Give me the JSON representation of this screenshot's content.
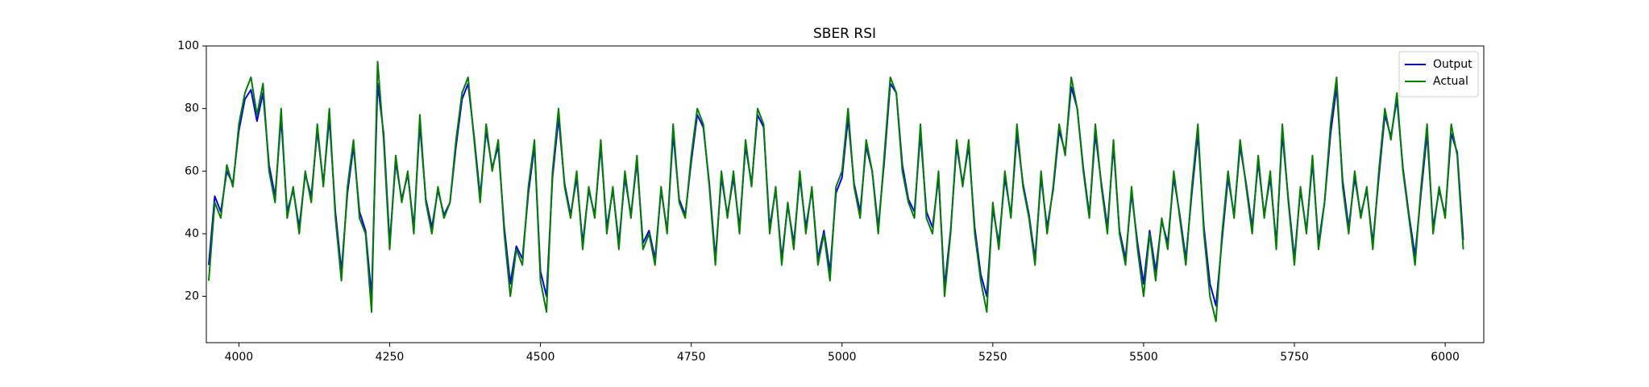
{
  "chart_data": {
    "type": "line",
    "title": "SBER RSI",
    "x": [
      3950,
      3960,
      3970,
      3980,
      3990,
      4000,
      4010,
      4020,
      4030,
      4040,
      4050,
      4060,
      4070,
      4080,
      4090,
      4100,
      4110,
      4120,
      4130,
      4140,
      4150,
      4160,
      4170,
      4180,
      4190,
      4200,
      4210,
      4220,
      4230,
      4240,
      4250,
      4260,
      4270,
      4280,
      4290,
      4300,
      4310,
      4320,
      4330,
      4340,
      4350,
      4360,
      4370,
      4380,
      4390,
      4400,
      4410,
      4420,
      4430,
      4440,
      4450,
      4460,
      4470,
      4480,
      4490,
      4500,
      4510,
      4520,
      4530,
      4540,
      4550,
      4560,
      4570,
      4580,
      4590,
      4600,
      4610,
      4620,
      4630,
      4640,
      4650,
      4660,
      4670,
      4680,
      4690,
      4700,
      4710,
      4720,
      4730,
      4740,
      4750,
      4760,
      4770,
      4780,
      4790,
      4800,
      4810,
      4820,
      4830,
      4840,
      4850,
      4860,
      4870,
      4880,
      4890,
      4900,
      4910,
      4920,
      4930,
      4940,
      4950,
      4960,
      4970,
      4980,
      4990,
      5000,
      5010,
      5020,
      5030,
      5040,
      5050,
      5060,
      5070,
      5080,
      5090,
      5100,
      5110,
      5120,
      5130,
      5140,
      5150,
      5160,
      5170,
      5180,
      5190,
      5200,
      5210,
      5220,
      5230,
      5240,
      5250,
      5260,
      5270,
      5280,
      5290,
      5300,
      5310,
      5320,
      5330,
      5340,
      5350,
      5360,
      5370,
      5380,
      5390,
      5400,
      5410,
      5420,
      5430,
      5440,
      5450,
      5460,
      5470,
      5480,
      5490,
      5500,
      5510,
      5520,
      5530,
      5540,
      5550,
      5560,
      5570,
      5580,
      5590,
      5600,
      5610,
      5620,
      5630,
      5640,
      5650,
      5660,
      5670,
      5680,
      5690,
      5700,
      5710,
      5720,
      5730,
      5740,
      5750,
      5760,
      5770,
      5780,
      5790,
      5800,
      5810,
      5820,
      5830,
      5840,
      5850,
      5860,
      5870,
      5880,
      5890,
      5900,
      5910,
      5920,
      5930,
      5940,
      5950,
      5960,
      5970,
      5980,
      5990,
      6000,
      6010,
      6020,
      6030
    ],
    "series": [
      {
        "name": "Output",
        "color": "#0000ff",
        "values": [
          30,
          52,
          47,
          60,
          56,
          73,
          83,
          86,
          76,
          85,
          62,
          52,
          77,
          47,
          54,
          42,
          59,
          52,
          73,
          56,
          77,
          47,
          28,
          53,
          68,
          47,
          41,
          20,
          88,
          72,
          37,
          63,
          51,
          59,
          42,
          75,
          51,
          42,
          54,
          46,
          50,
          68,
          83,
          88,
          71,
          52,
          73,
          61,
          68,
          42,
          24,
          36,
          32,
          53,
          68,
          28,
          20,
          58,
          77,
          56,
          46,
          58,
          37,
          54,
          46,
          68,
          42,
          54,
          37,
          58,
          46,
          63,
          37,
          41,
          32,
          54,
          41,
          72,
          51,
          46,
          63,
          78,
          74,
          56,
          32,
          58,
          46,
          58,
          42,
          68,
          56,
          78,
          74,
          42,
          54,
          32,
          49,
          37,
          58,
          42,
          54,
          32,
          41,
          28,
          53,
          58,
          77,
          56,
          47,
          68,
          60,
          42,
          63,
          88,
          85,
          62,
          51,
          47,
          72,
          47,
          42,
          58,
          23,
          41,
          68,
          56,
          68,
          42,
          27,
          20,
          48,
          37,
          58,
          46,
          72,
          56,
          46,
          32,
          58,
          42,
          54,
          73,
          66,
          87,
          80,
          61,
          46,
          72,
          56,
          42,
          68,
          41,
          32,
          53,
          37,
          24,
          41,
          28,
          44,
          37,
          58,
          46,
          32,
          53,
          72,
          42,
          24,
          17,
          38,
          58,
          46,
          68,
          56,
          42,
          63,
          46,
          58,
          37,
          72,
          51,
          32,
          54,
          41,
          63,
          37,
          50,
          72,
          87,
          57,
          42,
          58,
          46,
          54,
          37,
          58,
          78,
          71,
          83,
          61,
          46,
          33,
          53,
          72,
          42,
          54,
          46,
          72,
          66,
          38
        ]
      },
      {
        "name": "Actual",
        "color": "#007f00",
        "values": [
          25,
          50,
          45,
          62,
          55,
          75,
          85,
          90,
          78,
          88,
          60,
          50,
          80,
          45,
          55,
          40,
          60,
          50,
          75,
          55,
          80,
          45,
          25,
          55,
          70,
          45,
          40,
          15,
          95,
          70,
          35,
          65,
          50,
          60,
          40,
          78,
          50,
          40,
          55,
          45,
          50,
          70,
          85,
          90,
          70,
          50,
          75,
          60,
          70,
          40,
          20,
          35,
          30,
          55,
          70,
          25,
          15,
          60,
          80,
          55,
          45,
          60,
          35,
          55,
          45,
          70,
          40,
          55,
          35,
          60,
          45,
          65,
          35,
          40,
          30,
          55,
          40,
          75,
          50,
          45,
          65,
          80,
          75,
          55,
          30,
          60,
          45,
          60,
          40,
          70,
          55,
          80,
          75,
          40,
          55,
          30,
          50,
          35,
          60,
          40,
          55,
          30,
          40,
          25,
          55,
          60,
          80,
          55,
          45,
          70,
          60,
          40,
          65,
          90,
          85,
          60,
          50,
          45,
          75,
          45,
          40,
          60,
          20,
          40,
          70,
          55,
          70,
          40,
          25,
          15,
          50,
          35,
          60,
          45,
          75,
          55,
          45,
          30,
          60,
          40,
          55,
          75,
          65,
          90,
          80,
          60,
          45,
          75,
          55,
          40,
          70,
          40,
          30,
          55,
          35,
          20,
          40,
          25,
          45,
          35,
          60,
          45,
          30,
          55,
          75,
          40,
          20,
          12,
          40,
          60,
          45,
          70,
          55,
          40,
          65,
          45,
          60,
          35,
          75,
          50,
          30,
          55,
          40,
          65,
          35,
          50,
          75,
          90,
          55,
          40,
          60,
          45,
          55,
          35,
          60,
          80,
          70,
          85,
          60,
          45,
          30,
          55,
          75,
          40,
          55,
          45,
          75,
          65,
          35
        ]
      }
    ],
    "xlim": [
      3946,
      6064
    ],
    "xticks": [
      4000,
      4250,
      4500,
      4750,
      5000,
      5250,
      5500,
      5750,
      6000
    ],
    "ylim": [
      5.2,
      100
    ],
    "yticks": [
      20,
      40,
      60,
      80,
      100
    ],
    "legend": "upper right"
  }
}
